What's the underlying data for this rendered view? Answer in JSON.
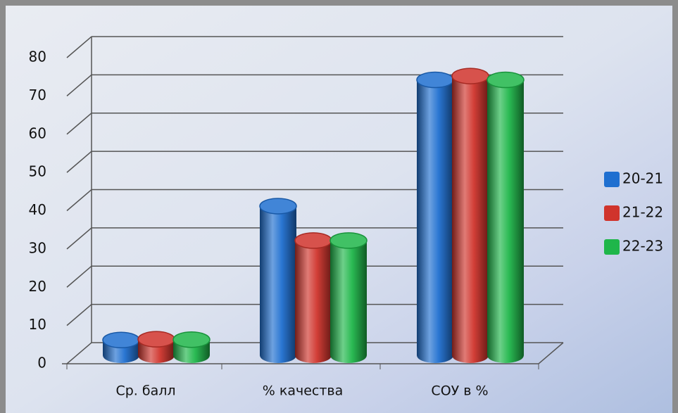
{
  "chart_data": {
    "type": "bar3d",
    "categories": [
      "Ср. балл",
      "% качества",
      "СОУ в %"
    ],
    "series": [
      {
        "name": "20-21",
        "color": "#1f6fd0",
        "values": [
          4,
          39,
          72
        ]
      },
      {
        "name": "21-22",
        "color": "#d0342c",
        "values": [
          4.2,
          30,
          73
        ]
      },
      {
        "name": "22-23",
        "color": "#1fb64a",
        "values": [
          4.1,
          30,
          72
        ]
      }
    ],
    "ylim": [
      0,
      80
    ],
    "yticks": [
      0,
      10,
      20,
      30,
      40,
      50,
      60,
      70,
      80
    ],
    "grid": true,
    "legend": "right"
  }
}
